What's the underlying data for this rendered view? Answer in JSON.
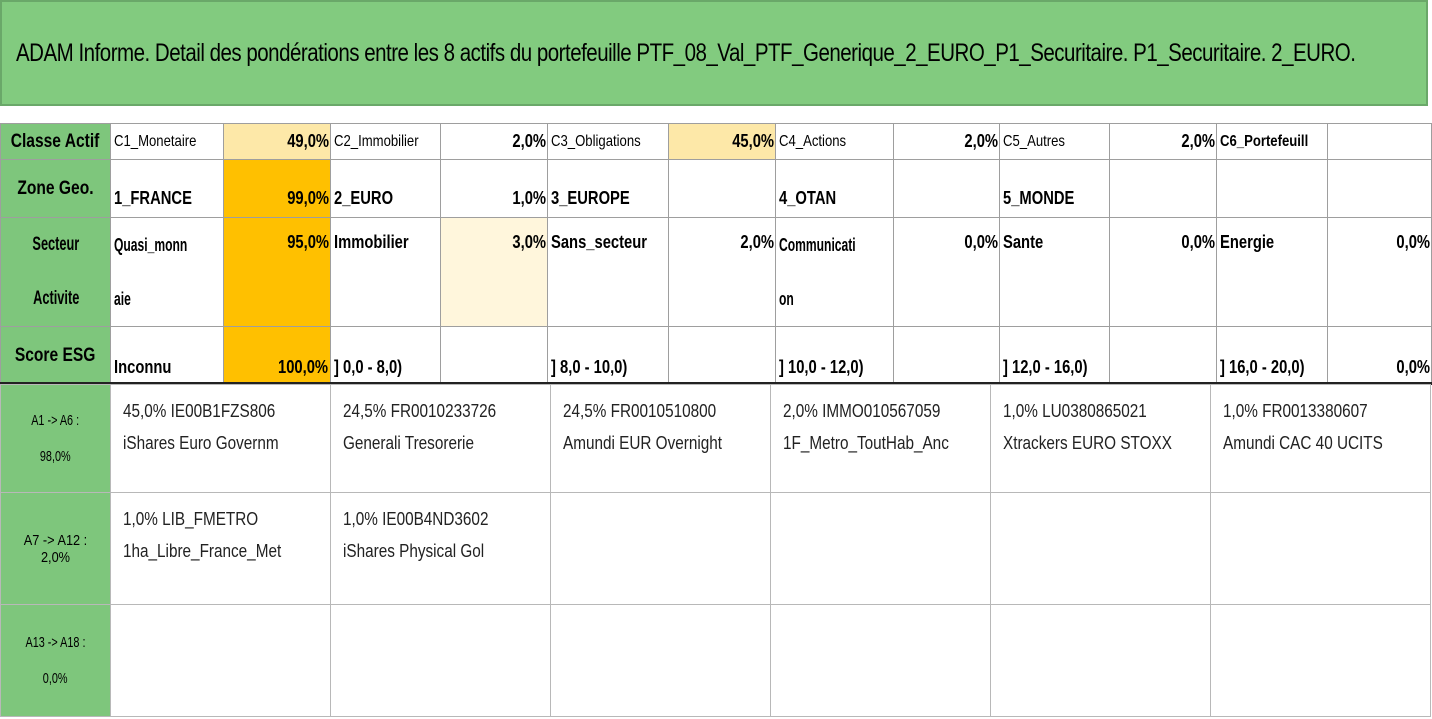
{
  "title": "ADAM Informe. Detail des pondérations entre les 8 actifs du portefeuille PTF_08_Val_PTF_Generique_2_EURO_P1_Securitaire. P1_Securitaire. 2_EURO.",
  "rows": {
    "classe": {
      "header": "Classe Actif",
      "cells": [
        {
          "label": "C1_Monetaire",
          "pct": "49,0%"
        },
        {
          "label": "C2_Immobilier",
          "pct": "2,0%"
        },
        {
          "label": "C3_Obligations",
          "pct": "45,0%"
        },
        {
          "label": "C4_Actions",
          "pct": "2,0%"
        },
        {
          "label": "C5_Autres",
          "pct": "2,0%"
        },
        {
          "label": "C6_Portefeuill",
          "pct": ""
        }
      ]
    },
    "zone": {
      "header": "Zone Geo.",
      "cells": [
        {
          "label": "1_FRANCE",
          "pct": "99,0%"
        },
        {
          "label": "2_EURO",
          "pct": "1,0%"
        },
        {
          "label": "3_EUROPE",
          "pct": ""
        },
        {
          "label": "4_OTAN",
          "pct": ""
        },
        {
          "label": "5_MONDE",
          "pct": ""
        },
        {
          "label": "",
          "pct": ""
        }
      ]
    },
    "secteur": {
      "header_line1": "Secteur",
      "header_line2": "Activite",
      "cells": [
        {
          "label1": "Quasi_monn",
          "label2": "aie",
          "pct": "95,0%"
        },
        {
          "label1": "Immobilier",
          "label2": "",
          "pct": "3,0%"
        },
        {
          "label1": "Sans_secteur",
          "label2": "",
          "pct": "2,0%"
        },
        {
          "label1": "Communicati",
          "label2": "on",
          "pct": "0,0%"
        },
        {
          "label1": "Sante",
          "label2": "",
          "pct": "0,0%"
        },
        {
          "label1": "Energie",
          "label2": "",
          "pct": "0,0%"
        }
      ]
    },
    "esg": {
      "header": "Score ESG",
      "cells": [
        {
          "label": "Inconnu",
          "pct": "100,0%"
        },
        {
          "label": "] 0,0 - 8,0)",
          "pct": ""
        },
        {
          "label": "] 8,0 - 10,0)",
          "pct": ""
        },
        {
          "label": "] 10,0 - 12,0)",
          "pct": ""
        },
        {
          "label": "] 12,0 - 16,0)",
          "pct": ""
        },
        {
          "label": "] 16,0 - 20,0)",
          "pct": "0,0%"
        }
      ]
    }
  },
  "assets": [
    {
      "header_line1": "A1 -> A6 :",
      "header_line2": "98,0%",
      "items": [
        {
          "line1": "45,0% IE00B1FZS806",
          "line2": "iShares Euro Governm"
        },
        {
          "line1": "24,5% FR0010233726",
          "line2": "Generali Tresorerie"
        },
        {
          "line1": "24,5% FR0010510800",
          "line2": "Amundi EUR Overnight"
        },
        {
          "line1": "2,0% IMMO010567059",
          "line2": "1F_Metro_ToutHab_Anc"
        },
        {
          "line1": "1,0% LU0380865021",
          "line2": "Xtrackers EURO STOXX"
        },
        {
          "line1": "1,0% FR0013380607",
          "line2": "Amundi CAC 40 UCITS"
        }
      ]
    },
    {
      "header_line1": "A7 -> A12 : 2,0%",
      "header_line2": "",
      "items": [
        {
          "line1": "1,0% LIB_FMETRO",
          "line2": "1ha_Libre_France_Met"
        },
        {
          "line1": "1,0% IE00B4ND3602",
          "line2": "iShares Physical Gol"
        },
        {
          "line1": "",
          "line2": ""
        },
        {
          "line1": "",
          "line2": ""
        },
        {
          "line1": "",
          "line2": ""
        },
        {
          "line1": "",
          "line2": ""
        }
      ]
    },
    {
      "header_line1": "A13 -> A18 :",
      "header_line2": "0,0%",
      "items": [
        {
          "line1": "",
          "line2": ""
        },
        {
          "line1": "",
          "line2": ""
        },
        {
          "line1": "",
          "line2": ""
        },
        {
          "line1": "",
          "line2": ""
        },
        {
          "line1": "",
          "line2": ""
        },
        {
          "line1": "",
          "line2": ""
        }
      ]
    }
  ],
  "colors": {
    "header_green": "#7ec67c",
    "title_green": "#82cb7f",
    "highlight_orange": "#ffc000",
    "highlight_light": "#fde8a8"
  }
}
